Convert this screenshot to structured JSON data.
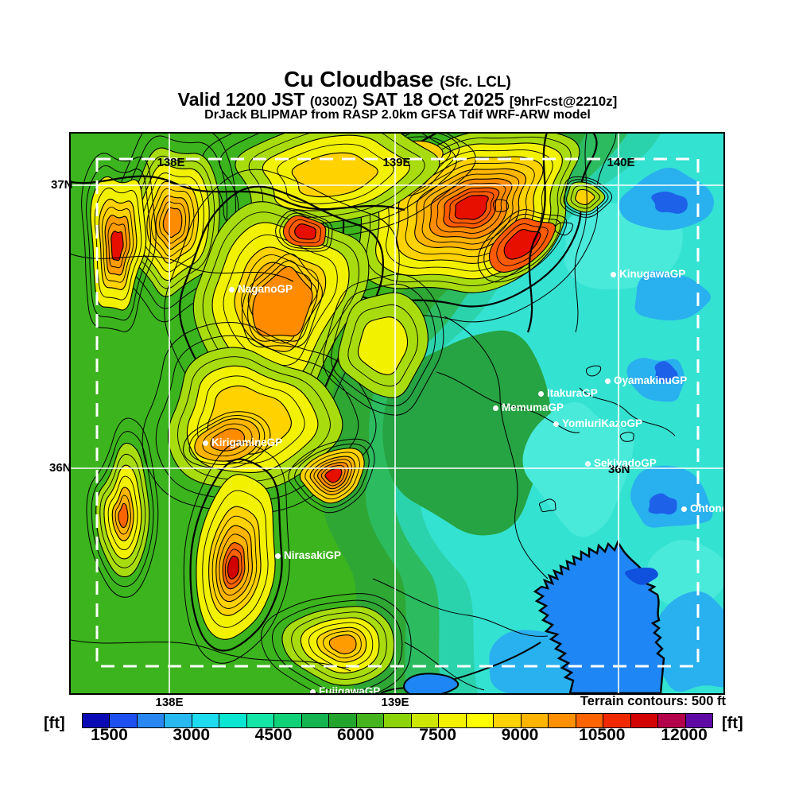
{
  "header": {
    "title": "Cu Cloudbase",
    "title_suffix": "(Sfc. LCL)",
    "valid_prefix": "Valid 1200 JST",
    "valid_zulu": "(0300Z)",
    "valid_date": "SAT 18 Oct 2025",
    "fcst_tag": "[9hrFcst@2210z]",
    "model_line": "DrJack BLIPMAP from RASP 2.0km GFSA Tdif WRF-ARW model"
  },
  "map": {
    "grid_labels_top": {
      "e138": "138E",
      "e139": "139E",
      "e140": "140E"
    },
    "lat_labels": {
      "n37_left": "37N",
      "n36_left": "36N",
      "n36_right": "36N"
    },
    "bottom_labels": {
      "e138": "138E",
      "e139": "139E"
    },
    "terrain_note": "Terrain contours: 500 ft",
    "sites": [
      "NaganoGP",
      "KinugawaGP",
      "OyamakinuGP",
      "ItakuraGP",
      "MemumaGP",
      "YomiuriKazoGP",
      "SekiyadoGP",
      "Ohtone",
      "KirigamineGP",
      "NirasakiGP",
      "FujigawaGP"
    ]
  },
  "legend": {
    "unit_left": "[ft]",
    "unit_right": "[ft]",
    "min_ft": 1000,
    "max_ft": 12500,
    "step_ft": 500,
    "tick_values": [
      1500,
      3000,
      4500,
      6000,
      7500,
      9000,
      10500,
      12000
    ],
    "colors": [
      "#0a0ab4",
      "#1e50f0",
      "#2887f0",
      "#28b9f0",
      "#1edcf0",
      "#0ae6d2",
      "#14e6a5",
      "#0fd278",
      "#14b450",
      "#23a52d",
      "#46b41e",
      "#8cd30a",
      "#cde600",
      "#f2f200",
      "#ffff00",
      "#ffd200",
      "#ffb400",
      "#ff9100",
      "#ff6400",
      "#f02800",
      "#d20000",
      "#b4004b",
      "#5f0aa5"
    ]
  }
}
